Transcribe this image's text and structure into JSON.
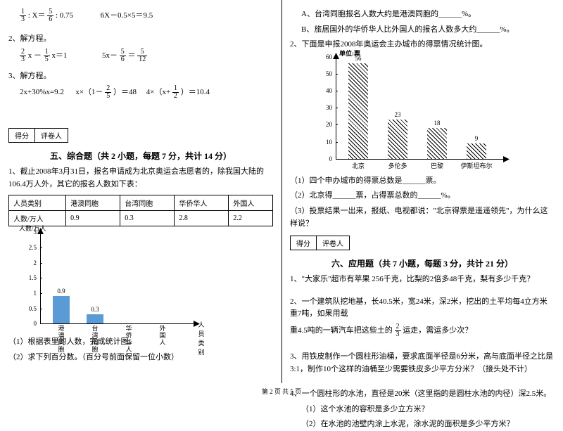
{
  "left": {
    "eq1a": "1/3 : X = 5/6 : 0.75",
    "eq1b": "6X－0.5×5＝9.5",
    "q2": "2、解方程。",
    "eq2a_l": "2/3 x － 1/5 x＝1",
    "eq2b": "5x－ 5/6 ＝ 5/12",
    "q3": "3、解方程。",
    "eq3a": "2x+30%x=9.2",
    "eq3b": "x×（1－ 2/5 ）＝48",
    "eq3c": "4×（x+ 1/2 ）＝10.4",
    "score1": "得分",
    "score2": "评卷人",
    "sec5_title": "五、综合题（共 2 小题，每题 7 分，共计 14 分）",
    "sec5_q1": "1、截止2008年3月31日，报名申请成为北京奥运会志愿者的，除我国大陆的106.4万人外，其它的报名人数如下表：",
    "table_h1": "人员类别",
    "table_h2": "港澳同胞",
    "table_h3": "台湾同胞",
    "table_h4": "华侨华人",
    "table_h5": "外国人",
    "table_r1": "人数/万人",
    "table_v1": "0.9",
    "table_v2": "0.3",
    "table_v3": "2.8",
    "table_v4": "2.2",
    "chart1_ylabel": "人数/万人",
    "chart1_xlabel": "人员类别",
    "chart1_ticks": [
      "0",
      "0.5",
      "1",
      "1.5",
      "2",
      "2.5",
      "3"
    ],
    "chart1_cats": [
      "港澳同胞",
      "台湾同胞",
      "华侨华人",
      "外国人"
    ],
    "chart1_vals": [
      0.9,
      0.3,
      null,
      null
    ],
    "chart1_labels": [
      "0.9",
      "0.3",
      "",
      ""
    ],
    "chart1_bar_color": "#5b9bd5",
    "sec5_sub1": "（1）根据表里的人数，完成统计图。",
    "sec5_sub2": "（2）求下列百分数。（百分号前面保留一位小数）"
  },
  "right": {
    "qA": "A、台湾同胞报名人数大约是港澳同胞的______%。",
    "qB": "B、旅居国外的华侨华人比外国人的报名人数多大约______%。",
    "sec5_q2": "2、下面是申报2008年奥运会主办城市的得票情况统计图。",
    "chart2_unit": "单位:票",
    "chart2_ticks": [
      "0",
      "10",
      "20",
      "30",
      "40",
      "50",
      "60"
    ],
    "chart2_cats": [
      "北京",
      "多伦多",
      "巴黎",
      "伊斯坦布尔"
    ],
    "chart2_vals": [
      56,
      23,
      18,
      9
    ],
    "chart2_labels": [
      "56",
      "23",
      "18",
      "9"
    ],
    "sub1": "（1）四个申办城市的得票总数是______票。",
    "sub2": "（2）北京得______票，占得票总数的______%。",
    "sub3": "（3）投票结果一出来，报纸、电视都说：\"北京得票是遥遥领先\"，为什么这样说？",
    "score1": "得分",
    "score2": "评卷人",
    "sec6_title": "六、应用题（共 7 小题，每题 3 分，共计 21 分）",
    "sec6_q1": "1、\"大家乐\"超市有苹果 256千克，比梨的2倍多48千克，梨有多少千克？",
    "sec6_q2a": "2、一个建筑队挖地基，长40.5米，宽24米，深2米，挖出的土平均每4立方米重7吨，如果用载",
    "sec6_q2b": "重4.5吨的一辆汽车把这些土的 2/3 运走，需运多少次？",
    "sec6_q3": "3、用铁皮制作一个圆柱形油桶，要求底面半径是6分米，高与底面半径之比是3:1，制作10个这样的油桶至少需要铁皮多少平方分米？（接头处不计）",
    "sec6_q4": "4、一个圆柱形的水池，直径是20米（这里指的是圆柱水池的内径）深2.5米。",
    "sec6_q4a": "（1）这个水池的容积是多少立方米？",
    "sec6_q4b": "（2）在水池的池壁内涂上水泥，涂水泥的面积是多少平方米？"
  },
  "footer": "第 2 页 共 5 页"
}
